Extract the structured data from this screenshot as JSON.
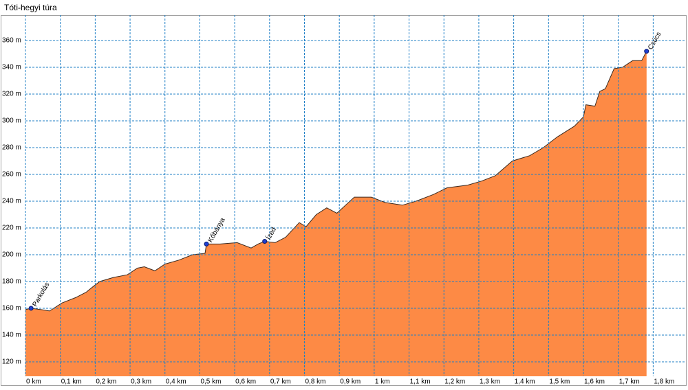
{
  "chart_data": {
    "type": "area",
    "title": "Tóti-hegyi túra",
    "x": [
      0,
      0.016,
      0.045,
      0.069,
      0.105,
      0.144,
      0.174,
      0.193,
      0.213,
      0.252,
      0.292,
      0.321,
      0.341,
      0.371,
      0.4,
      0.44,
      0.479,
      0.515,
      0.519,
      0.558,
      0.607,
      0.647,
      0.667,
      0.686,
      0.716,
      0.746,
      0.785,
      0.805,
      0.834,
      0.864,
      0.893,
      0.943,
      0.992,
      1.031,
      1.081,
      1.12,
      1.17,
      1.209,
      1.268,
      1.308,
      1.347,
      1.396,
      1.446,
      1.485,
      1.525,
      1.574,
      1.6,
      1.607,
      1.633,
      1.647,
      1.663,
      1.688,
      1.712,
      1.741,
      1.767,
      1.781
    ],
    "values": [
      159,
      160,
      159,
      158,
      164,
      168,
      172,
      176,
      180,
      183,
      185,
      190,
      191,
      188,
      193,
      196,
      200,
      201,
      208,
      208,
      209,
      205,
      208,
      210,
      209,
      213,
      224,
      221,
      230,
      235,
      231,
      243,
      243,
      239,
      237,
      240,
      245,
      250,
      252,
      255,
      259,
      270,
      274,
      280,
      288,
      296,
      303,
      312,
      311,
      322,
      324,
      339,
      340,
      345,
      345,
      352
    ],
    "color": "#fd8a45",
    "points": [
      {
        "label": "Parkolás",
        "x": 0.016,
        "y": 160
      },
      {
        "label": "Kőbánya",
        "x": 0.519,
        "y": 208
      },
      {
        "label": "Ízed",
        "x": 0.686,
        "y": 210
      },
      {
        "label": "Csúcs",
        "x": 1.781,
        "y": 352
      }
    ],
    "xlim": [
      0,
      1.89
    ],
    "ylim": [
      109.2,
      379
    ],
    "xticks": [
      {
        "value": 0,
        "label": "0 km"
      },
      {
        "value": 0.1,
        "label": "0,1 km"
      },
      {
        "value": 0.2,
        "label": "0,2 km"
      },
      {
        "value": 0.3,
        "label": "0,3 km"
      },
      {
        "value": 0.4,
        "label": "0,4 km"
      },
      {
        "value": 0.5,
        "label": "0,5 km"
      },
      {
        "value": 0.6,
        "label": "0,6 km"
      },
      {
        "value": 0.7,
        "label": "0,7 km"
      },
      {
        "value": 0.8,
        "label": "0,8 km"
      },
      {
        "value": 0.9,
        "label": "0,9 km"
      },
      {
        "value": 1,
        "label": "1 km"
      },
      {
        "value": 1.1,
        "label": "1,1 km"
      },
      {
        "value": 1.2,
        "label": "1,2 km"
      },
      {
        "value": 1.3,
        "label": "1,3 km"
      },
      {
        "value": 1.4,
        "label": "1,4 km"
      },
      {
        "value": 1.5,
        "label": "1,5 km"
      },
      {
        "value": 1.6,
        "label": "1,6 km"
      },
      {
        "value": 1.7,
        "label": "1,7 km"
      },
      {
        "value": 1.8,
        "label": "1,8 km"
      }
    ],
    "yticks": [
      {
        "value": 120,
        "label": "120 m"
      },
      {
        "value": 140,
        "label": "140 m"
      },
      {
        "value": 160,
        "label": "160 m"
      },
      {
        "value": 180,
        "label": "180 m"
      },
      {
        "value": 200,
        "label": "200 m"
      },
      {
        "value": 220,
        "label": "220 m"
      },
      {
        "value": 240,
        "label": "240 m"
      },
      {
        "value": 260,
        "label": "260 m"
      },
      {
        "value": 280,
        "label": "280 m"
      },
      {
        "value": 300,
        "label": "300 m"
      },
      {
        "value": 320,
        "label": "320 m"
      },
      {
        "value": 340,
        "label": "340 m"
      },
      {
        "value": 360,
        "label": "360 m"
      }
    ],
    "grid": true
  }
}
